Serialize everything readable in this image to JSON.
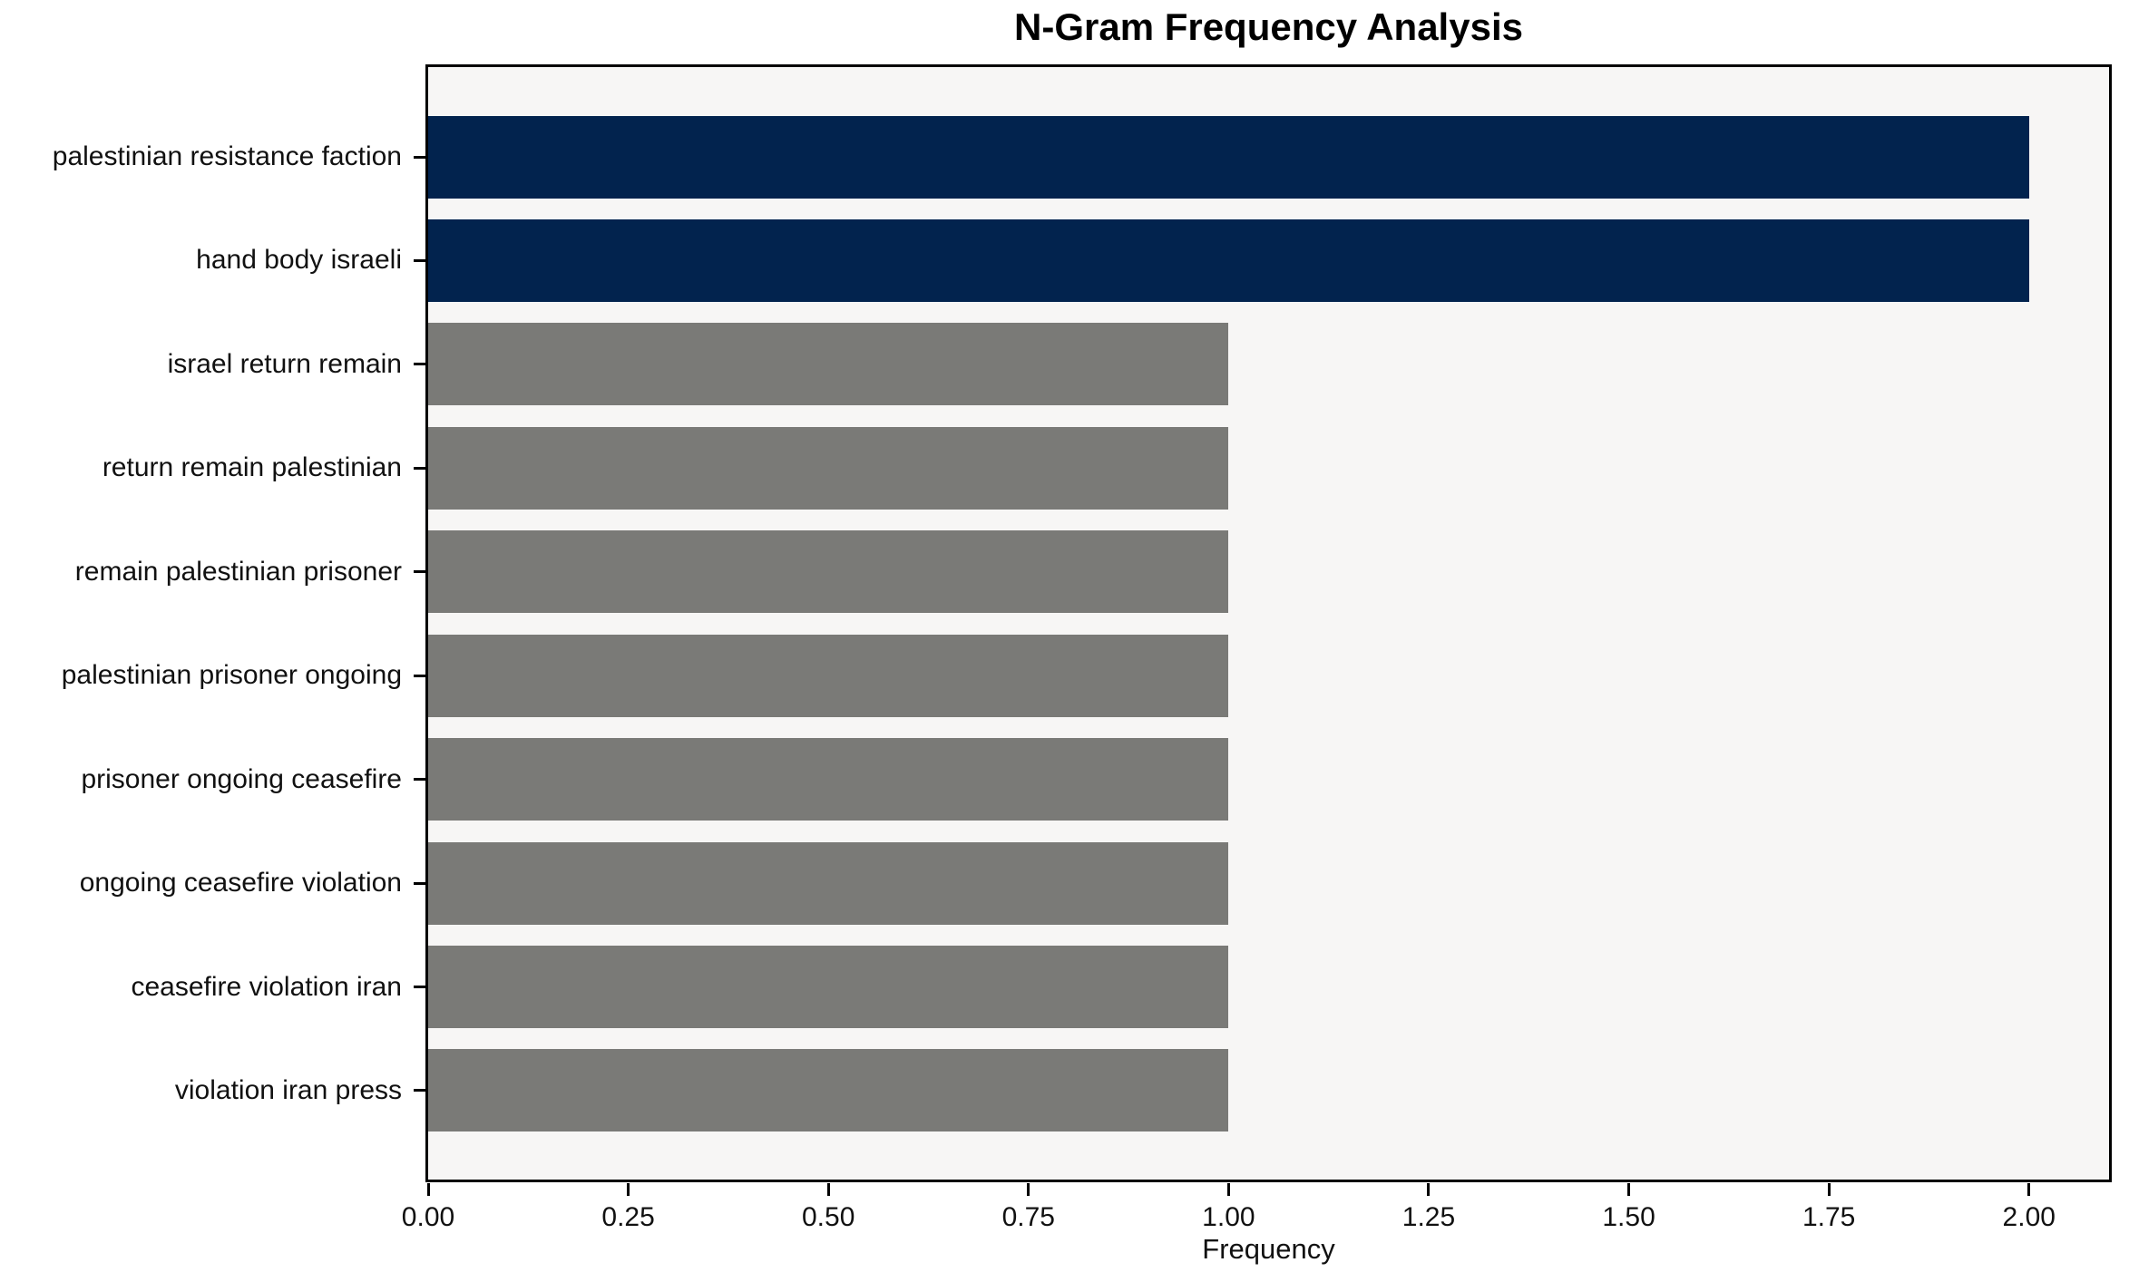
{
  "chart_data": {
    "type": "bar",
    "orientation": "horizontal",
    "title": "N-Gram Frequency Analysis",
    "xlabel": "Frequency",
    "ylabel": "",
    "categories": [
      "palestinian resistance faction",
      "hand body israeli",
      "israel return remain",
      "return remain palestinian",
      "remain palestinian prisoner",
      "palestinian prisoner ongoing",
      "prisoner ongoing ceasefire",
      "ongoing ceasefire violation",
      "ceasefire violation iran",
      "violation iran press"
    ],
    "values": [
      2,
      2,
      1,
      1,
      1,
      1,
      1,
      1,
      1,
      1
    ],
    "bar_colors": [
      "#02234e",
      "#02234e",
      "#7a7a77",
      "#7a7a77",
      "#7a7a77",
      "#7a7a77",
      "#7a7a77",
      "#7a7a77",
      "#7a7a77",
      "#7a7a77"
    ],
    "x_tick_values": [
      0.0,
      0.25,
      0.5,
      0.75,
      1.0,
      1.25,
      1.5,
      1.75,
      2.0
    ],
    "x_tick_labels": [
      "0.00",
      "0.25",
      "0.50",
      "0.75",
      "1.00",
      "1.25",
      "1.50",
      "1.75",
      "2.00"
    ],
    "xlim": [
      0,
      2.1
    ],
    "grid": false,
    "legend": null,
    "plot_bg": "#f7f6f5",
    "figure_bg": "#ffffff",
    "colors": {
      "highlight": "#02234e",
      "default": "#7a7a77"
    }
  }
}
